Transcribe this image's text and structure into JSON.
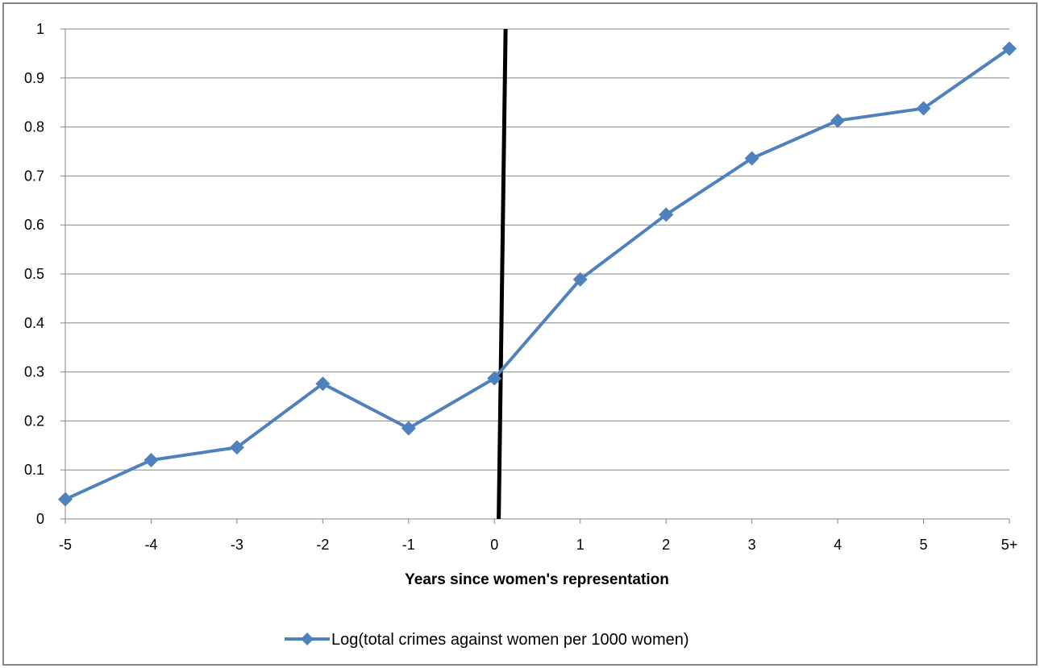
{
  "chart_data": {
    "type": "line",
    "title": "",
    "xlabel": "Years since women's representation",
    "ylabel": "",
    "categories": [
      "-5",
      "-4",
      "-3",
      "-2",
      "-1",
      "0",
      "1",
      "2",
      "3",
      "4",
      "5",
      "5+"
    ],
    "series": [
      {
        "name": "Log(total crimes against women per 1000 women)",
        "color": "#4F81BD",
        "marker": "diamond",
        "values": [
          0.04,
          0.12,
          0.146,
          0.276,
          0.185,
          0.287,
          0.489,
          0.621,
          0.736,
          0.813,
          0.838,
          0.96
        ]
      }
    ],
    "ylim": [
      0,
      1
    ],
    "yticks": [
      "0",
      "0.1",
      "0.2",
      "0.3",
      "0.4",
      "0.5",
      "0.6",
      "0.7",
      "0.8",
      "0.9",
      "1"
    ],
    "grid": true,
    "legend_position": "bottom",
    "annotations": [
      {
        "type": "reference-line",
        "color": "#000000",
        "from": {
          "category_index": 5.05,
          "y": 0
        },
        "to": {
          "category_index": 5.13,
          "y": 1
        }
      }
    ]
  }
}
